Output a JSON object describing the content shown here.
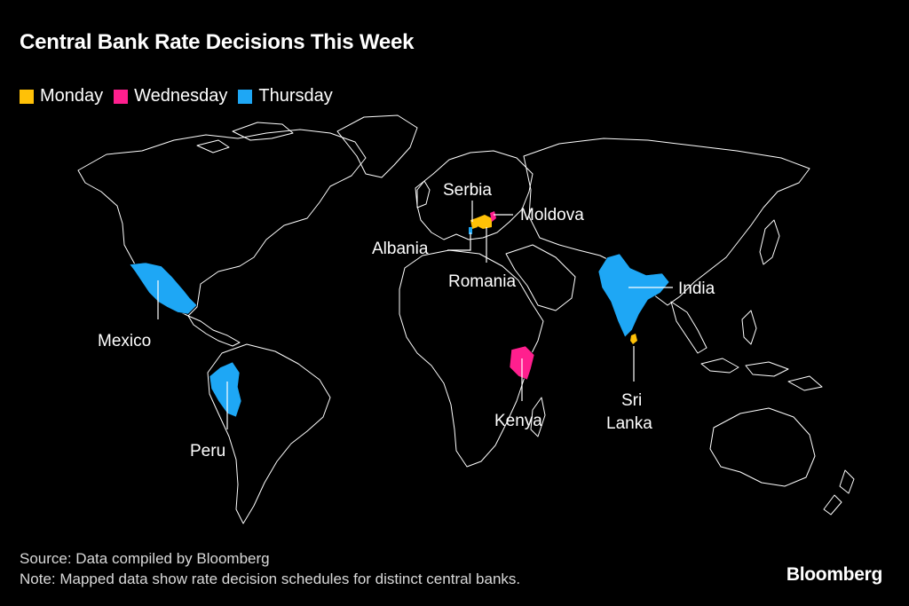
{
  "title": "Central Bank Rate Decisions This Week",
  "legend": [
    {
      "label": "Monday",
      "color": "#FFC107"
    },
    {
      "label": "Wednesday",
      "color": "#FF1F8E"
    },
    {
      "label": "Thursday",
      "color": "#1EA7F5"
    }
  ],
  "countries": [
    {
      "name": "Serbia",
      "day": "Monday"
    },
    {
      "name": "Moldova",
      "day": "Wednesday"
    },
    {
      "name": "Albania",
      "day": "Thursday"
    },
    {
      "name": "Romania",
      "day": "Monday"
    },
    {
      "name": "India",
      "day": "Thursday"
    },
    {
      "name": "Mexico",
      "day": "Thursday"
    },
    {
      "name": "Kenya",
      "day": "Wednesday"
    },
    {
      "name": "Sri",
      "day": "Monday"
    },
    {
      "name": "Lanka",
      "day": "Monday"
    },
    {
      "name": "Peru",
      "day": "Thursday"
    }
  ],
  "footer": {
    "source": "Source: Data compiled by Bloomberg",
    "note": "Note: Mapped data show rate decision schedules for distinct central banks."
  },
  "brand": "Bloomberg",
  "colors": {
    "background": "#000000",
    "land_outline": "#ffffff",
    "monday": "#FFC107",
    "wednesday": "#FF1F8E",
    "thursday": "#1EA7F5"
  }
}
